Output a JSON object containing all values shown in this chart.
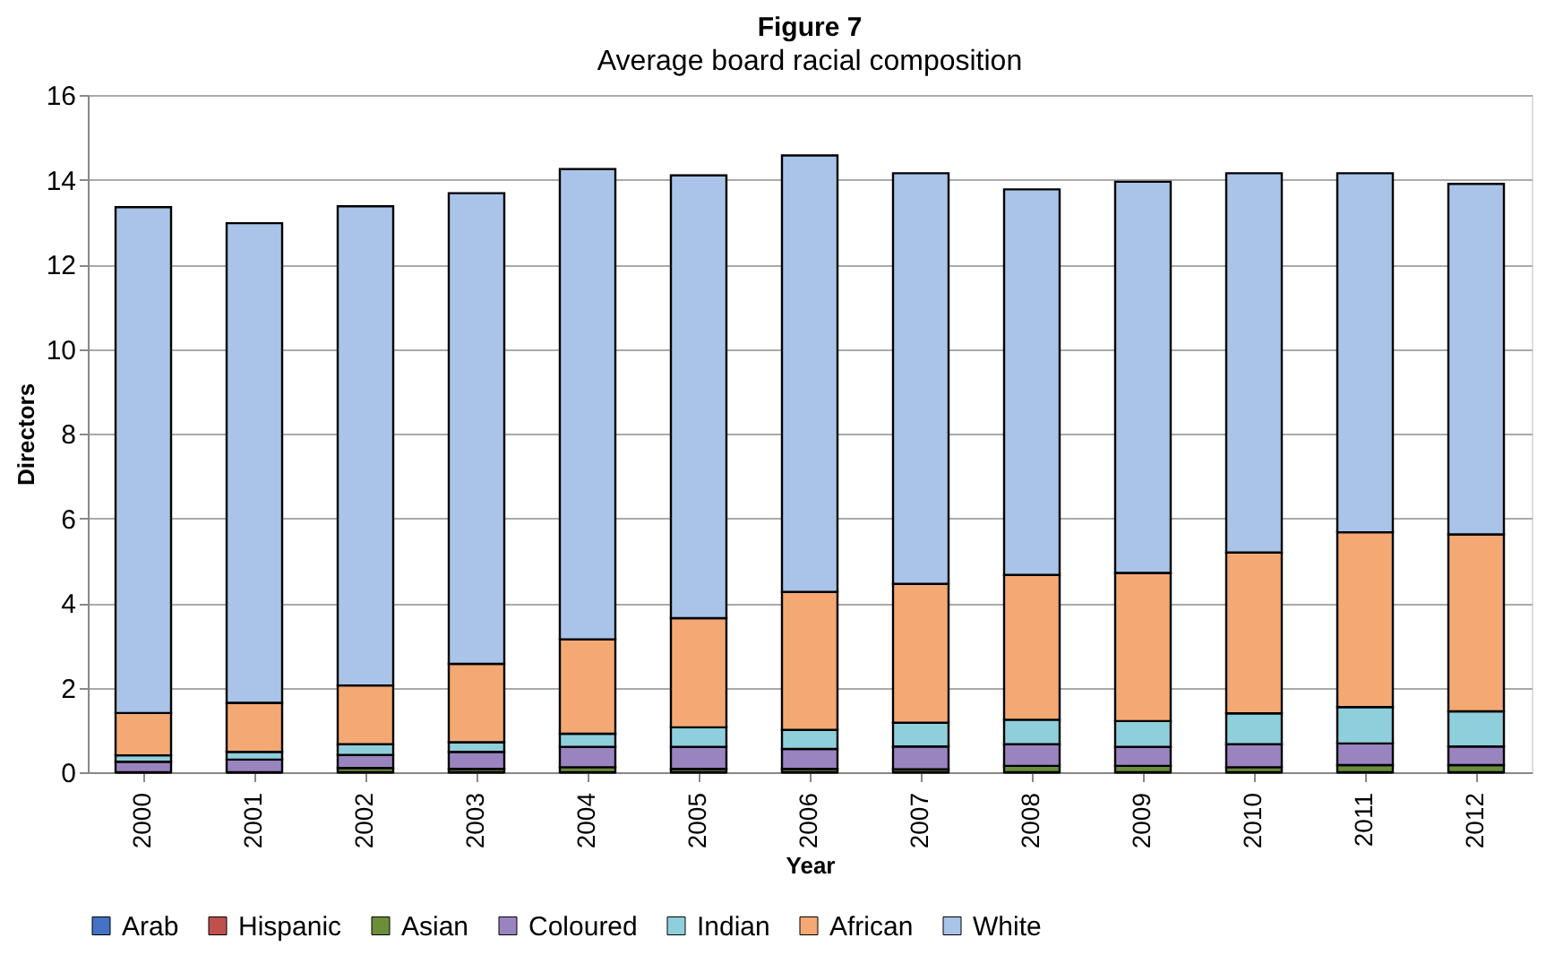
{
  "chart_data": {
    "type": "bar",
    "stacked": true,
    "title": "Figure 7",
    "subtitle": "Average board racial composition",
    "xlabel": "Year",
    "ylabel": "Directors",
    "categories": [
      "2000",
      "2001",
      "2002",
      "2003",
      "2004",
      "2005",
      "2006",
      "2007",
      "2008",
      "2009",
      "2010",
      "2011",
      "2012"
    ],
    "series": [
      {
        "name": "Arab",
        "color": "#4472c4",
        "values": [
          0,
          0,
          0,
          0,
          0,
          0,
          0,
          0,
          0,
          0,
          0,
          0,
          0
        ]
      },
      {
        "name": "Hispanic",
        "color": "#c0504d",
        "values": [
          0,
          0,
          0,
          0,
          0,
          0,
          0,
          0,
          0,
          0,
          0,
          0,
          0
        ]
      },
      {
        "name": "Asian",
        "color": "#6b8e3a",
        "values": [
          0,
          0,
          0.1,
          0.08,
          0.12,
          0.08,
          0.08,
          0.07,
          0.15,
          0.15,
          0.12,
          0.17,
          0.17
        ]
      },
      {
        "name": "Coloured",
        "color": "#9a84c0",
        "values": [
          0.25,
          0.3,
          0.31,
          0.4,
          0.48,
          0.52,
          0.47,
          0.54,
          0.51,
          0.45,
          0.54,
          0.51,
          0.44
        ]
      },
      {
        "name": "Indian",
        "color": "#8fcfdc",
        "values": [
          0.15,
          0.18,
          0.25,
          0.23,
          0.31,
          0.46,
          0.45,
          0.56,
          0.58,
          0.61,
          0.73,
          0.86,
          0.83
        ]
      },
      {
        "name": "African",
        "color": "#f4a873",
        "values": [
          1.0,
          1.16,
          1.39,
          1.85,
          2.23,
          2.58,
          3.26,
          3.28,
          3.42,
          3.5,
          3.8,
          4.13,
          4.18
        ]
      },
      {
        "name": "White",
        "color": "#a9c4e8",
        "values": [
          11.95,
          11.33,
          11.32,
          11.12,
          11.11,
          10.46,
          10.31,
          9.7,
          9.11,
          9.24,
          8.96,
          8.48,
          8.28
        ]
      }
    ],
    "ylim": [
      0,
      16
    ],
    "yticks": [
      0,
      2,
      4,
      6,
      8,
      10,
      12,
      14,
      16
    ],
    "grid": "y",
    "legend": "bottom"
  }
}
